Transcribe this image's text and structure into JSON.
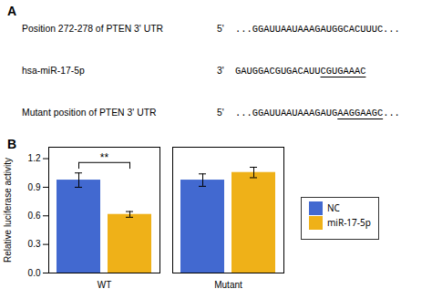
{
  "chart_data": {
    "type": "bar",
    "panels": [
      "A",
      "B"
    ],
    "annotations": [
      {
        "label": "Position 272-278 of PTEN 3' UTR",
        "prime": "5'",
        "sequence": "...GGAUUAAUAAAGAUGGCACUUUC..."
      },
      {
        "label": "hsa-miR-17-5p",
        "prime": "3'",
        "sequence": "GAUGGACGUGACAUUCGUGAAAC",
        "underline": [
          15,
          23
        ]
      },
      {
        "label": "Mutant position of PTEN 3' UTR",
        "prime": "5'",
        "sequence": "...GGAUUAAUAAAGAUGAAGGAAGC...",
        "underline": [
          18,
          26
        ]
      }
    ],
    "categories": [
      "WT",
      "Mutant"
    ],
    "series": [
      {
        "name": "NC",
        "values": [
          0.975,
          0.975
        ],
        "errors": [
          0.075,
          0.065
        ]
      },
      {
        "name": "miR-17-5p",
        "values": [
          0.615,
          1.055
        ],
        "errors": [
          0.03,
          0.055
        ]
      }
    ],
    "ylabel": "Relative luciferase activity",
    "ylim": [
      0.0,
      1.32
    ],
    "yticks": [
      {
        "value": 0.0,
        "label": "0.0"
      },
      0.3,
      0.6,
      0.9,
      1.2
    ],
    "significance": [
      {
        "category": "WT",
        "label": "**"
      }
    ],
    "legend": "right",
    "grid": false
  }
}
